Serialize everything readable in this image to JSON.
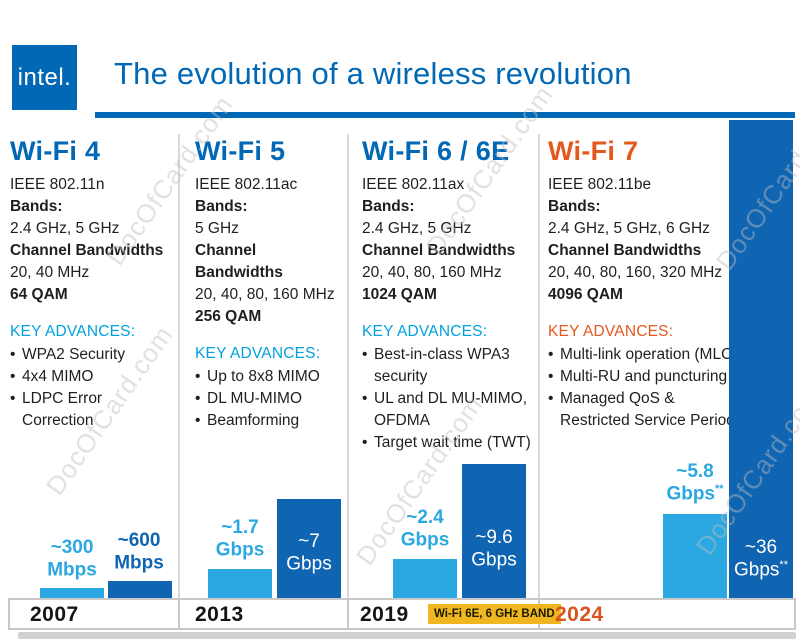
{
  "header": {
    "logo": "intel.",
    "title": "The evolution of a wireless revolution"
  },
  "watermark": {
    "text": "DocOfCard.com"
  },
  "columns": [
    {
      "title": "Wi-Fi 4",
      "standard": "IEEE 802.11n",
      "bands_label": "Bands:",
      "bands": "2.4 GHz, 5 GHz",
      "bandwidth_label": "Channel Bandwidths",
      "bandwidths": "20, 40 MHz",
      "qam": "64 QAM",
      "key_advances_label": "KEY ADVANCES:",
      "advances": [
        "WPA2 Security",
        "4x4 MIMO",
        "LDPC Error Correction"
      ],
      "year": "2007",
      "bars": {
        "light": {
          "line1": "~300",
          "line2": "Mbps",
          "sup": ""
        },
        "dark": {
          "line1": "~600",
          "line2": "Mbps",
          "sup": ""
        }
      }
    },
    {
      "title": "Wi-Fi 5",
      "standard": "IEEE 802.11ac",
      "bands_label": "Bands:",
      "bands": "5 GHz",
      "bandwidth_label": "Channel Bandwidths",
      "bandwidths": "20, 40, 80, 160 MHz",
      "qam": "256 QAM",
      "key_advances_label": "KEY ADVANCES:",
      "advances": [
        "Up to 8x8 MIMO",
        "DL MU-MIMO",
        "Beamforming"
      ],
      "year": "2013",
      "bars": {
        "light": {
          "line1": "~1.7",
          "line2": "Gbps",
          "sup": ""
        },
        "dark": {
          "line1": "~7",
          "line2": "Gbps",
          "sup": ""
        }
      }
    },
    {
      "title": "Wi-Fi 6 / 6E",
      "standard": "IEEE 802.11ax",
      "bands_label": "Bands:",
      "bands": "2.4 GHz, 5 GHz",
      "bandwidth_label": "Channel Bandwidths",
      "bandwidths": "20, 40, 80, 160 MHz",
      "qam": "1024 QAM",
      "key_advances_label": "KEY ADVANCES:",
      "advances": [
        "Best-in-class WPA3 security",
        "UL and DL MU-MIMO, OFDMA",
        "Target wait time (TWT)"
      ],
      "year": "2019",
      "year_badge": "Wi-Fi 6E, 6 GHz BAND",
      "bars": {
        "light": {
          "line1": "~2.4",
          "line2": "Gbps",
          "sup": ""
        },
        "dark": {
          "line1": "~9.6",
          "line2": "Gbps",
          "sup": ""
        }
      }
    },
    {
      "title": "Wi-Fi 7",
      "standard": "IEEE 802.11be",
      "bands_label": "Bands:",
      "bands": "2.4 GHz, 5 GHz, 6 GHz",
      "bandwidth_label": "Channel Bandwidths",
      "bandwidths": "20, 40, 80, 160, 320 MHz",
      "qam": "4096 QAM",
      "key_advances_label": "KEY ADVANCES:",
      "advances": [
        "Multi-link operation (MLO)",
        "Multi-RU and puncturing",
        "Managed QoS & Restricted Service Periods"
      ],
      "year": "2024",
      "bars": {
        "light": {
          "line1": "~5.8",
          "line2": "Gbps",
          "sup": "**"
        },
        "dark": {
          "line1": "~36",
          "line2": "Gbps",
          "sup": "**"
        }
      }
    }
  ]
}
